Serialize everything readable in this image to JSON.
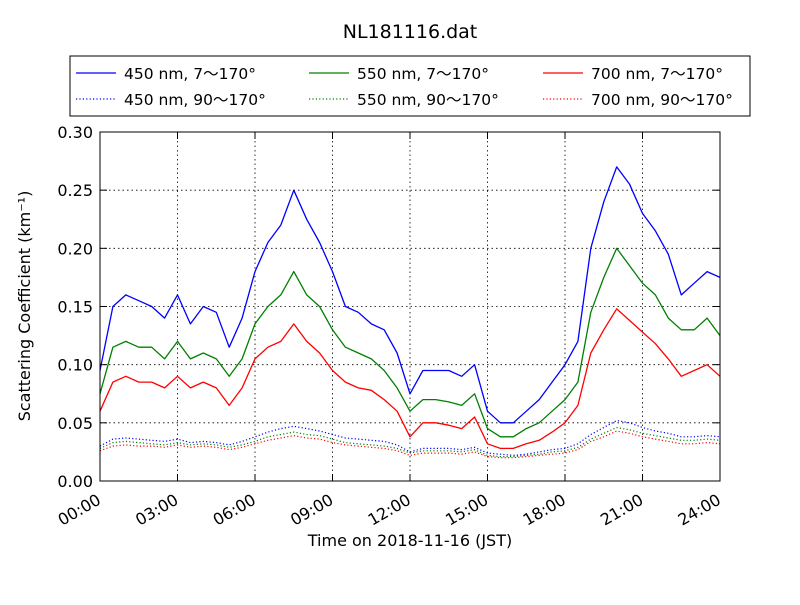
{
  "chart_data": {
    "type": "line",
    "title": "NL181116.dat",
    "xlabel": "Time on 2018-11-16 (JST)",
    "ylabel": "Scattering Coefficient (km⁻¹)",
    "ylim": [
      0.0,
      0.3
    ],
    "xlim": [
      "00:00",
      "24:00"
    ],
    "grid": true,
    "legend_position": "top",
    "x_ticks": [
      "00:00",
      "03:00",
      "06:00",
      "09:00",
      "12:00",
      "15:00",
      "18:00",
      "21:00",
      "24:00"
    ],
    "y_ticks": [
      "0.00",
      "0.05",
      "0.10",
      "0.15",
      "0.20",
      "0.25",
      "0.30"
    ],
    "x": [
      "00:00",
      "00:30",
      "01:00",
      "01:30",
      "02:00",
      "02:30",
      "03:00",
      "03:30",
      "04:00",
      "04:30",
      "05:00",
      "05:30",
      "06:00",
      "06:30",
      "07:00",
      "07:30",
      "08:00",
      "08:30",
      "09:00",
      "09:30",
      "10:00",
      "10:30",
      "11:00",
      "11:30",
      "12:00",
      "12:30",
      "13:00",
      "13:30",
      "14:00",
      "14:30",
      "15:00",
      "15:30",
      "16:00",
      "16:30",
      "17:00",
      "17:30",
      "18:00",
      "18:30",
      "19:00",
      "19:30",
      "20:00",
      "20:30",
      "21:00",
      "21:30",
      "22:00",
      "22:30",
      "23:00",
      "23:30",
      "24:00"
    ],
    "series": [
      {
        "name": "450 nm, 7～170°",
        "color": "#0000ff",
        "style": "solid",
        "values": [
          0.095,
          0.15,
          0.16,
          0.155,
          0.15,
          0.14,
          0.16,
          0.135,
          0.15,
          0.145,
          0.115,
          0.14,
          0.18,
          0.205,
          0.22,
          0.25,
          0.225,
          0.205,
          0.18,
          0.15,
          0.145,
          0.135,
          0.13,
          0.11,
          0.075,
          0.095,
          0.095,
          0.095,
          0.09,
          0.1,
          0.06,
          0.05,
          0.05,
          0.06,
          0.07,
          0.085,
          0.1,
          0.12,
          0.2,
          0.24,
          0.27,
          0.255,
          0.23,
          0.215,
          0.195,
          0.16,
          0.17,
          0.18,
          0.175
        ]
      },
      {
        "name": "450 nm, 90～170°",
        "color": "#0000ff",
        "style": "dotted",
        "values": [
          0.03,
          0.036,
          0.037,
          0.036,
          0.035,
          0.034,
          0.036,
          0.033,
          0.034,
          0.033,
          0.031,
          0.034,
          0.038,
          0.042,
          0.045,
          0.047,
          0.045,
          0.043,
          0.04,
          0.037,
          0.036,
          0.035,
          0.034,
          0.031,
          0.025,
          0.028,
          0.028,
          0.028,
          0.027,
          0.029,
          0.024,
          0.023,
          0.022,
          0.023,
          0.025,
          0.027,
          0.028,
          0.032,
          0.04,
          0.046,
          0.052,
          0.05,
          0.046,
          0.043,
          0.041,
          0.038,
          0.038,
          0.039,
          0.038
        ]
      },
      {
        "name": "550 nm, 7～170°",
        "color": "#008000",
        "style": "solid",
        "values": [
          0.075,
          0.115,
          0.12,
          0.115,
          0.115,
          0.105,
          0.12,
          0.105,
          0.11,
          0.105,
          0.09,
          0.105,
          0.135,
          0.15,
          0.16,
          0.18,
          0.16,
          0.15,
          0.13,
          0.115,
          0.11,
          0.105,
          0.095,
          0.08,
          0.06,
          0.07,
          0.07,
          0.068,
          0.065,
          0.075,
          0.045,
          0.038,
          0.038,
          0.045,
          0.05,
          0.06,
          0.07,
          0.085,
          0.145,
          0.175,
          0.2,
          0.185,
          0.17,
          0.16,
          0.14,
          0.13,
          0.13,
          0.14,
          0.125
        ]
      },
      {
        "name": "550 nm, 90～170°",
        "color": "#008000",
        "style": "dotted",
        "values": [
          0.028,
          0.033,
          0.034,
          0.033,
          0.032,
          0.031,
          0.033,
          0.031,
          0.032,
          0.031,
          0.029,
          0.031,
          0.034,
          0.038,
          0.04,
          0.042,
          0.04,
          0.039,
          0.036,
          0.033,
          0.032,
          0.031,
          0.03,
          0.028,
          0.024,
          0.026,
          0.026,
          0.026,
          0.025,
          0.027,
          0.022,
          0.021,
          0.021,
          0.022,
          0.023,
          0.025,
          0.026,
          0.029,
          0.036,
          0.041,
          0.046,
          0.044,
          0.041,
          0.039,
          0.037,
          0.035,
          0.035,
          0.036,
          0.035
        ]
      },
      {
        "name": "700 nm, 7～170°",
        "color": "#ff0000",
        "style": "solid",
        "values": [
          0.06,
          0.085,
          0.09,
          0.085,
          0.085,
          0.08,
          0.09,
          0.08,
          0.085,
          0.08,
          0.065,
          0.08,
          0.105,
          0.115,
          0.12,
          0.135,
          0.12,
          0.11,
          0.095,
          0.085,
          0.08,
          0.078,
          0.07,
          0.06,
          0.038,
          0.05,
          0.05,
          0.048,
          0.045,
          0.055,
          0.032,
          0.028,
          0.028,
          0.032,
          0.035,
          0.042,
          0.05,
          0.065,
          0.11,
          0.13,
          0.148,
          0.138,
          0.128,
          0.118,
          0.105,
          0.09,
          0.095,
          0.1,
          0.09
        ]
      },
      {
        "name": "700 nm, 90～170°",
        "color": "#ff0000",
        "style": "dotted",
        "values": [
          0.026,
          0.03,
          0.031,
          0.03,
          0.03,
          0.029,
          0.031,
          0.029,
          0.03,
          0.029,
          0.027,
          0.029,
          0.032,
          0.035,
          0.037,
          0.039,
          0.037,
          0.036,
          0.033,
          0.031,
          0.03,
          0.029,
          0.028,
          0.026,
          0.022,
          0.024,
          0.024,
          0.024,
          0.023,
          0.025,
          0.021,
          0.02,
          0.02,
          0.021,
          0.022,
          0.023,
          0.024,
          0.027,
          0.034,
          0.038,
          0.043,
          0.041,
          0.038,
          0.036,
          0.034,
          0.032,
          0.032,
          0.033,
          0.032
        ]
      }
    ]
  }
}
